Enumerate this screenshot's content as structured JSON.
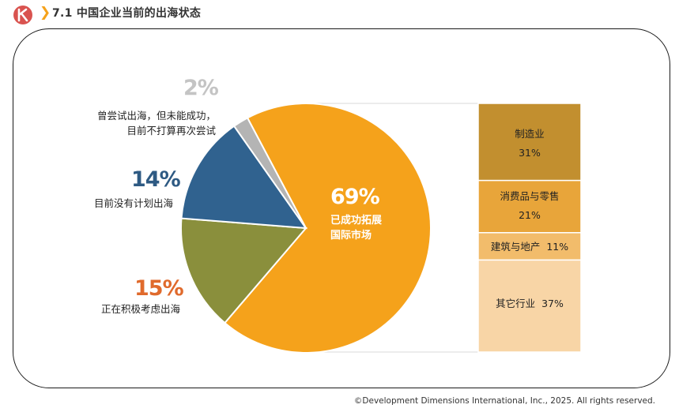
{
  "header": {
    "title": "7.1 中国企业当前的出海状态",
    "chevron": "❯",
    "accent_color": "#d9534f"
  },
  "chart_data": [
    {
      "type": "pie",
      "title": "",
      "slices": [
        {
          "value": 69,
          "pct_label": "69%",
          "label_lines": [
            "已成功拓展",
            "国际市场"
          ],
          "color": "#f5a21b"
        },
        {
          "value": 15,
          "pct_label": "15%",
          "label_lines": [
            "正在积极考虑出海"
          ],
          "color": "#8a8f3c"
        },
        {
          "value": 14,
          "pct_label": "14%",
          "label_lines": [
            "目前没有计划出海"
          ],
          "color": "#30628f"
        },
        {
          "value": 2,
          "pct_label": "2%",
          "label_lines": [
            "曾尝试出海，但未能成功，",
            "目前不打算再次尝试"
          ],
          "color": "#b4b4b4"
        }
      ]
    },
    {
      "type": "bar",
      "stacked": true,
      "title": "",
      "segments": [
        {
          "category": "制造业",
          "value": 31,
          "display": "31%",
          "color": "#c28f2f"
        },
        {
          "category": "消费品与零售",
          "value": 21,
          "display": "21%",
          "color": "#e8a53a"
        },
        {
          "category": "建筑与地产",
          "value": 11,
          "display": "11%",
          "color": "#f2bc6b"
        },
        {
          "category": "其它行业",
          "value": 37,
          "display": "37%",
          "color": "#f8d5a6"
        }
      ]
    }
  ],
  "footer": {
    "copyright": "©Development Dimensions International, Inc., 2025. All rights reserved."
  }
}
